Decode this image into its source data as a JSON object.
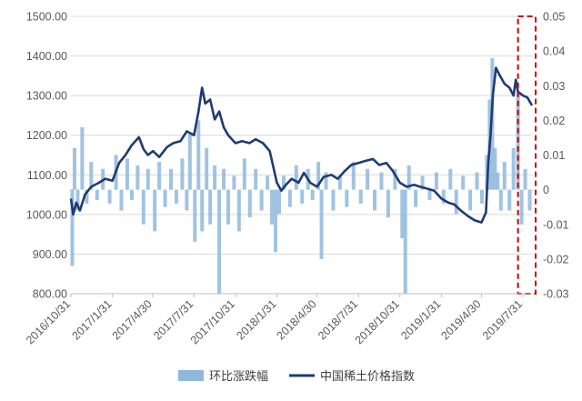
{
  "chart_data": {
    "type": "line",
    "x_ticks": [
      "2016/10/31",
      "2017/1/31",
      "2017/4/30",
      "2017/7/31",
      "2017/10/31",
      "2018/1/31",
      "2018/4/30",
      "2018/7/31",
      "2018/10/31",
      "2019/1/31",
      "2019/4/30",
      "2019/7/31"
    ],
    "y_left": {
      "min": 800,
      "max": 1500,
      "step": 100,
      "ticks": [
        "800.00",
        "900.00",
        "1000.00",
        "1100.00",
        "1200.00",
        "1300.00",
        "1400.00",
        "1500.00"
      ]
    },
    "y_right": {
      "min": -0.03,
      "max": 0.05,
      "step": 0.01,
      "ticks": [
        "-0.03",
        "-0.02",
        "-0.01",
        "0",
        "0.01",
        "0.02",
        "0.03",
        "0.04",
        "0.05"
      ]
    },
    "highlight": {
      "from": "2019/7/20",
      "to": "2019/8/20",
      "color": "#cc0000"
    },
    "series": [
      {
        "name": "环比涨跌幅",
        "axis": "right",
        "kind": "area",
        "color": "#8fb8dd",
        "points": [
          [
            "2016/10/31",
            0.0
          ],
          [
            "2016/11/3",
            -0.022
          ],
          [
            "2016/11/8",
            0.012
          ],
          [
            "2016/11/15",
            -0.006
          ],
          [
            "2016/11/25",
            0.018
          ],
          [
            "2016/12/5",
            -0.004
          ],
          [
            "2016/12/15",
            0.008
          ],
          [
            "2016/12/28",
            -0.003
          ],
          [
            "2017/1/10",
            0.006
          ],
          [
            "2017/1/25",
            -0.004
          ],
          [
            "2017/2/8",
            0.01
          ],
          [
            "2017/2/20",
            -0.006
          ],
          [
            "2017/3/5",
            0.009
          ],
          [
            "2017/3/15",
            -0.003
          ],
          [
            "2017/3/28",
            0.007
          ],
          [
            "2017/4/10",
            -0.01
          ],
          [
            "2017/4/20",
            0.006
          ],
          [
            "2017/5/5",
            -0.012
          ],
          [
            "2017/5/15",
            0.008
          ],
          [
            "2017/5/28",
            -0.005
          ],
          [
            "2017/6/10",
            0.006
          ],
          [
            "2017/6/22",
            -0.004
          ],
          [
            "2017/7/5",
            0.009
          ],
          [
            "2017/7/15",
            -0.006
          ],
          [
            "2017/7/22",
            0.016
          ],
          [
            "2017/8/2",
            -0.015
          ],
          [
            "2017/8/10",
            0.02
          ],
          [
            "2017/8/18",
            -0.012
          ],
          [
            "2017/8/28",
            0.012
          ],
          [
            "2017/9/5",
            -0.01
          ],
          [
            "2017/9/15",
            0.007
          ],
          [
            "2017/9/25",
            -0.03
          ],
          [
            "2017/10/5",
            0.006
          ],
          [
            "2017/10/15",
            -0.01
          ],
          [
            "2017/10/28",
            0.004
          ],
          [
            "2017/11/8",
            -0.012
          ],
          [
            "2017/11/20",
            0.009
          ],
          [
            "2017/12/2",
            -0.008
          ],
          [
            "2017/12/15",
            0.006
          ],
          [
            "2017/12/28",
            -0.006
          ],
          [
            "2018/1/10",
            0.004
          ],
          [
            "2018/1/20",
            -0.01
          ],
          [
            "2018/1/28",
            -0.018
          ],
          [
            "2018/2/5",
            -0.007
          ],
          [
            "2018/2/15",
            0.004
          ],
          [
            "2018/3/1",
            -0.005
          ],
          [
            "2018/3/15",
            0.007
          ],
          [
            "2018/3/28",
            -0.004
          ],
          [
            "2018/4/10",
            0.006
          ],
          [
            "2018/4/20",
            -0.003
          ],
          [
            "2018/5/3",
            0.008
          ],
          [
            "2018/5/10",
            -0.02
          ],
          [
            "2018/5/20",
            0.005
          ],
          [
            "2018/6/5",
            -0.006
          ],
          [
            "2018/6/20",
            0.004
          ],
          [
            "2018/7/5",
            -0.005
          ],
          [
            "2018/7/20",
            0.008
          ],
          [
            "2018/8/5",
            -0.004
          ],
          [
            "2018/8/20",
            0.006
          ],
          [
            "2018/9/5",
            -0.006
          ],
          [
            "2018/9/20",
            0.005
          ],
          [
            "2018/10/5",
            -0.008
          ],
          [
            "2018/10/20",
            0.006
          ],
          [
            "2018/11/5",
            -0.014
          ],
          [
            "2018/11/12",
            -0.03
          ],
          [
            "2018/11/20",
            0.007
          ],
          [
            "2018/12/5",
            -0.005
          ],
          [
            "2018/12/20",
            0.004
          ],
          [
            "2019/1/5",
            -0.003
          ],
          [
            "2019/1/20",
            0.005
          ],
          [
            "2019/2/5",
            -0.004
          ],
          [
            "2019/2/20",
            0.006
          ],
          [
            "2019/3/5",
            -0.007
          ],
          [
            "2019/3/20",
            0.004
          ],
          [
            "2019/4/5",
            -0.006
          ],
          [
            "2019/4/20",
            0.005
          ],
          [
            "2019/5/1",
            -0.004
          ],
          [
            "2019/5/12",
            0.01
          ],
          [
            "2019/5/18",
            0.026
          ],
          [
            "2019/5/24",
            0.038
          ],
          [
            "2019/5/30",
            0.012
          ],
          [
            "2019/6/5",
            0.005
          ],
          [
            "2019/6/12",
            -0.006
          ],
          [
            "2019/6/20",
            0.008
          ],
          [
            "2019/7/1",
            -0.006
          ],
          [
            "2019/7/10",
            0.012
          ],
          [
            "2019/7/20",
            0.028
          ],
          [
            "2019/7/28",
            -0.01
          ],
          [
            "2019/8/5",
            0.006
          ],
          [
            "2019/8/15",
            -0.006
          ],
          [
            "2019/8/20",
            0.0
          ]
        ]
      },
      {
        "name": "中国稀土价格指数",
        "axis": "left",
        "kind": "line",
        "color": "#1f3b73",
        "points": [
          [
            "2016/10/31",
            1040
          ],
          [
            "2016/11/5",
            1000
          ],
          [
            "2016/11/12",
            1030
          ],
          [
            "2016/11/20",
            1010
          ],
          [
            "2016/12/1",
            1050
          ],
          [
            "2016/12/15",
            1070
          ],
          [
            "2017/1/1",
            1080
          ],
          [
            "2017/1/15",
            1090
          ],
          [
            "2017/1/31",
            1085
          ],
          [
            "2017/2/15",
            1130
          ],
          [
            "2017/3/1",
            1150
          ],
          [
            "2017/3/15",
            1175
          ],
          [
            "2017/3/31",
            1195
          ],
          [
            "2017/4/10",
            1165
          ],
          [
            "2017/4/20",
            1150
          ],
          [
            "2017/5/1",
            1160
          ],
          [
            "2017/5/15",
            1145
          ],
          [
            "2017/6/1",
            1170
          ],
          [
            "2017/6/15",
            1180
          ],
          [
            "2017/7/1",
            1185
          ],
          [
            "2017/7/15",
            1210
          ],
          [
            "2017/7/31",
            1200
          ],
          [
            "2017/8/10",
            1260
          ],
          [
            "2017/8/18",
            1320
          ],
          [
            "2017/8/25",
            1280
          ],
          [
            "2017/9/5",
            1290
          ],
          [
            "2017/9/15",
            1240
          ],
          [
            "2017/9/25",
            1260
          ],
          [
            "2017/10/5",
            1220
          ],
          [
            "2017/10/15",
            1200
          ],
          [
            "2017/10/31",
            1180
          ],
          [
            "2017/11/15",
            1185
          ],
          [
            "2017/12/1",
            1180
          ],
          [
            "2017/12/15",
            1190
          ],
          [
            "2017/12/31",
            1180
          ],
          [
            "2018/1/15",
            1160
          ],
          [
            "2018/1/31",
            1080
          ],
          [
            "2018/2/10",
            1060
          ],
          [
            "2018/2/20",
            1075
          ],
          [
            "2018/3/5",
            1090
          ],
          [
            "2018/3/20",
            1080
          ],
          [
            "2018/4/1",
            1105
          ],
          [
            "2018/4/15",
            1080
          ],
          [
            "2018/4/30",
            1070
          ],
          [
            "2018/5/15",
            1095
          ],
          [
            "2018/6/1",
            1100
          ],
          [
            "2018/6/15",
            1090
          ],
          [
            "2018/7/1",
            1110
          ],
          [
            "2018/7/15",
            1125
          ],
          [
            "2018/7/31",
            1130
          ],
          [
            "2018/8/15",
            1135
          ],
          [
            "2018/9/1",
            1140
          ],
          [
            "2018/9/15",
            1125
          ],
          [
            "2018/10/1",
            1130
          ],
          [
            "2018/10/15",
            1110
          ],
          [
            "2018/10/31",
            1080
          ],
          [
            "2018/11/15",
            1070
          ],
          [
            "2018/12/1",
            1075
          ],
          [
            "2018/12/15",
            1070
          ],
          [
            "2018/12/31",
            1065
          ],
          [
            "2019/1/15",
            1060
          ],
          [
            "2019/1/31",
            1040
          ],
          [
            "2019/2/15",
            1030
          ],
          [
            "2019/3/1",
            1025
          ],
          [
            "2019/3/15",
            1010
          ],
          [
            "2019/4/1",
            995
          ],
          [
            "2019/4/15",
            985
          ],
          [
            "2019/4/30",
            980
          ],
          [
            "2019/5/10",
            1005
          ],
          [
            "2019/5/15",
            1130
          ],
          [
            "2019/5/20",
            1200
          ],
          [
            "2019/5/25",
            1300
          ],
          [
            "2019/6/1",
            1370
          ],
          [
            "2019/6/10",
            1350
          ],
          [
            "2019/6/20",
            1330
          ],
          [
            "2019/7/1",
            1320
          ],
          [
            "2019/7/10",
            1300
          ],
          [
            "2019/7/15",
            1340
          ],
          [
            "2019/7/20",
            1310
          ],
          [
            "2019/7/31",
            1300
          ],
          [
            "2019/8/10",
            1295
          ],
          [
            "2019/8/20",
            1275
          ]
        ]
      }
    ]
  }
}
